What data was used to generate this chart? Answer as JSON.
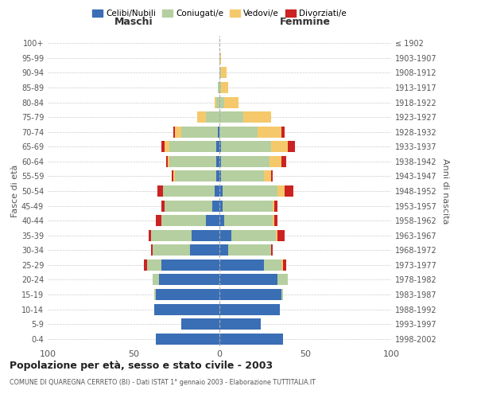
{
  "age_groups": [
    "0-4",
    "5-9",
    "10-14",
    "15-19",
    "20-24",
    "25-29",
    "30-34",
    "35-39",
    "40-44",
    "45-49",
    "50-54",
    "55-59",
    "60-64",
    "65-69",
    "70-74",
    "75-79",
    "80-84",
    "85-89",
    "90-94",
    "95-99",
    "100+"
  ],
  "birth_years": [
    "1998-2002",
    "1993-1997",
    "1988-1992",
    "1983-1987",
    "1978-1982",
    "1973-1977",
    "1968-1972",
    "1963-1967",
    "1958-1962",
    "1953-1957",
    "1948-1952",
    "1943-1947",
    "1938-1942",
    "1933-1937",
    "1928-1932",
    "1923-1927",
    "1918-1922",
    "1913-1917",
    "1908-1912",
    "1903-1907",
    "≤ 1902"
  ],
  "males": {
    "celibi": [
      37,
      22,
      38,
      37,
      35,
      34,
      17,
      16,
      8,
      4,
      3,
      2,
      2,
      2,
      1,
      0,
      0,
      0,
      0,
      0,
      0
    ],
    "coniugati": [
      0,
      0,
      0,
      1,
      4,
      8,
      22,
      24,
      26,
      28,
      30,
      24,
      27,
      27,
      21,
      8,
      2,
      1,
      0,
      0,
      0
    ],
    "vedovi": [
      0,
      0,
      0,
      0,
      0,
      0,
      0,
      0,
      0,
      0,
      0,
      1,
      1,
      3,
      4,
      5,
      1,
      0,
      0,
      0,
      0
    ],
    "divorziati": [
      0,
      0,
      0,
      0,
      0,
      2,
      1,
      1,
      3,
      2,
      3,
      1,
      1,
      2,
      1,
      0,
      0,
      0,
      0,
      0,
      0
    ]
  },
  "females": {
    "nubili": [
      37,
      24,
      35,
      36,
      34,
      26,
      5,
      7,
      3,
      2,
      2,
      1,
      1,
      1,
      0,
      0,
      0,
      0,
      0,
      0,
      0
    ],
    "coniugate": [
      0,
      0,
      0,
      1,
      6,
      10,
      25,
      26,
      28,
      29,
      32,
      25,
      28,
      29,
      22,
      14,
      3,
      1,
      1,
      0,
      0
    ],
    "vedove": [
      0,
      0,
      0,
      0,
      0,
      1,
      0,
      1,
      1,
      1,
      4,
      4,
      7,
      10,
      14,
      16,
      8,
      4,
      3,
      1,
      0
    ],
    "divorziate": [
      0,
      0,
      0,
      0,
      0,
      2,
      1,
      4,
      2,
      2,
      5,
      1,
      3,
      4,
      2,
      0,
      0,
      0,
      0,
      0,
      0
    ]
  },
  "colors": {
    "celibi": "#3a6eb5",
    "coniugati": "#b5cfa0",
    "vedovi": "#f5c96b",
    "divorziati": "#cc2222"
  },
  "legend_labels": [
    "Celibi/Nubili",
    "Coniugati/e",
    "Vedovi/e",
    "Divorziati/e"
  ],
  "title": "Popolazione per età, sesso e stato civile - 2003",
  "subtitle": "COMUNE DI QUAREGNA CERRETO (BI) - Dati ISTAT 1° gennaio 2003 - Elaborazione TUTTITALIA.IT",
  "xlabel_left": "Maschi",
  "xlabel_right": "Femmine",
  "ylabel_left": "Fasce di età",
  "ylabel_right": "Anni di nascita",
  "xlim": 100
}
